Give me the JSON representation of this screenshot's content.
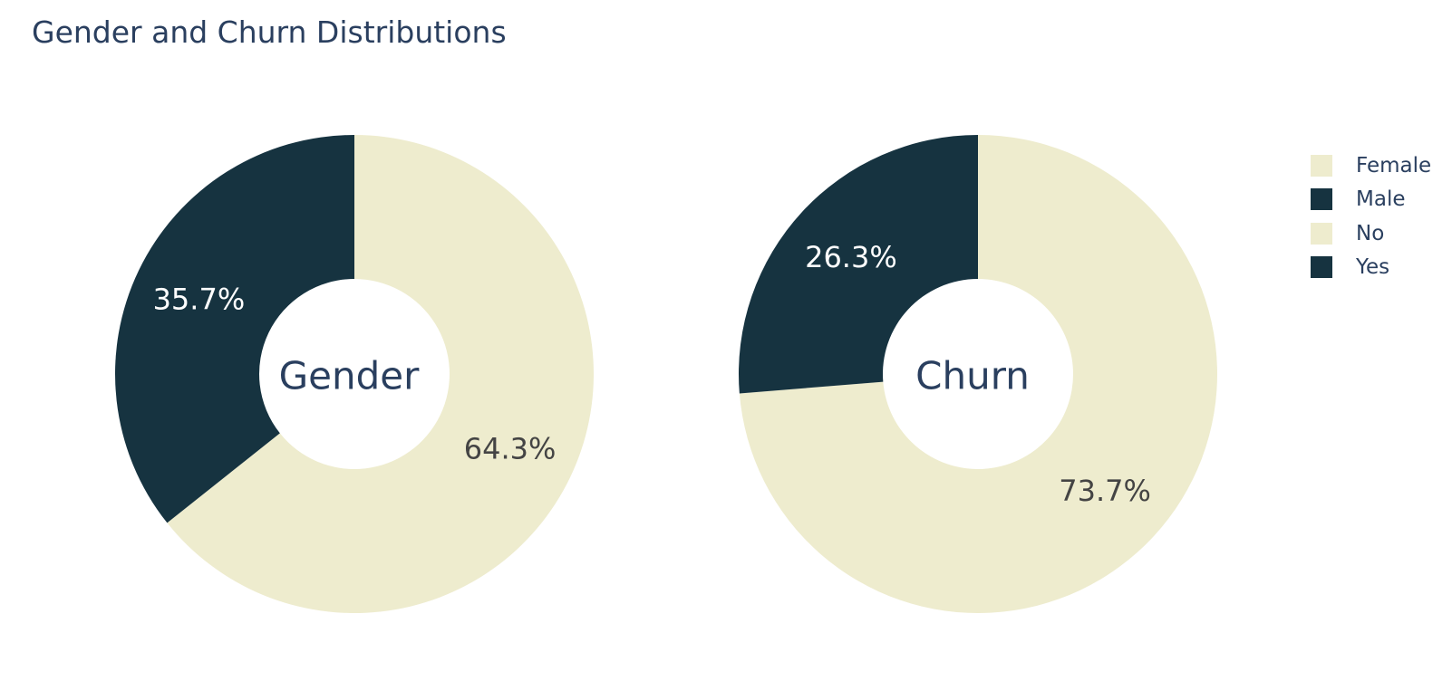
{
  "title": "Gender and Churn Distributions",
  "colors": {
    "light": "#eeecce",
    "dark": "#163340",
    "text": "#2a3f5f"
  },
  "chart_data": [
    {
      "type": "pie",
      "hole_label": "Gender",
      "categories": [
        "Female",
        "Male"
      ],
      "values": [
        64.3,
        35.7
      ],
      "labels": [
        "64.3%",
        "35.7%"
      ],
      "colors": [
        "#eeecce",
        "#163340"
      ],
      "label_colors": [
        "#444444",
        "#ffffff"
      ]
    },
    {
      "type": "pie",
      "hole_label": "Churn",
      "categories": [
        "No",
        "Yes"
      ],
      "values": [
        73.7,
        26.3
      ],
      "labels": [
        "73.7%",
        "26.3%"
      ],
      "colors": [
        "#eeecce",
        "#163340"
      ],
      "label_colors": [
        "#444444",
        "#ffffff"
      ]
    }
  ],
  "legend": {
    "position": "top-right",
    "items": [
      {
        "label": "Female",
        "color": "#eeecce"
      },
      {
        "label": "Male",
        "color": "#163340"
      },
      {
        "label": "No",
        "color": "#eeecce"
      },
      {
        "label": "Yes",
        "color": "#163340"
      }
    ]
  }
}
